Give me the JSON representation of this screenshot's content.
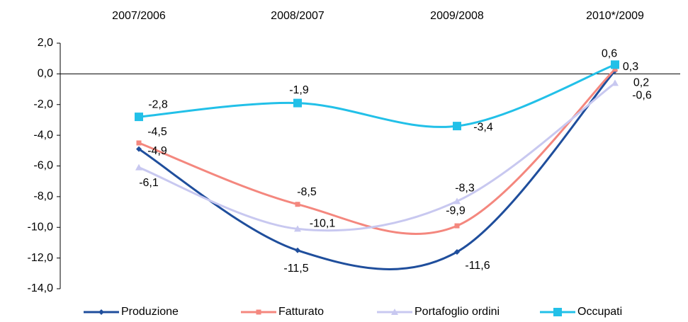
{
  "chart_data": {
    "type": "line",
    "categories": [
      "2007/2006",
      "2008/2007",
      "2009/2008",
      "2010*/2009"
    ],
    "ylim": [
      -14,
      2
    ],
    "yticks": [
      {
        "value": 2,
        "label": "2,0"
      },
      {
        "value": 0,
        "label": "0,0"
      },
      {
        "value": -2,
        "label": "-2,0"
      },
      {
        "value": -4,
        "label": "-4,0"
      },
      {
        "value": -6,
        "label": "-6,0"
      },
      {
        "value": -8,
        "label": "-8,0"
      },
      {
        "value": -10,
        "label": "-10,0"
      },
      {
        "value": -12,
        "label": "-12,0"
      },
      {
        "value": -14,
        "label": "-14,0"
      }
    ],
    "smooth": true,
    "series": [
      {
        "name": "Produzione",
        "color": "#1f4e9c",
        "marker": "diamond",
        "values": [
          -4.9,
          -11.5,
          -11.6,
          0.2
        ],
        "value_labels": [
          "-4,9",
          "-11,5",
          "-11,6",
          "0,2"
        ]
      },
      {
        "name": "Fatturato",
        "color": "#f4877e",
        "marker": "square",
        "values": [
          -4.5,
          -8.5,
          -9.9,
          0.3
        ],
        "value_labels": [
          "-4,5",
          "-8,5",
          "-9,9",
          "0,3"
        ]
      },
      {
        "name": "Portafoglio ordini",
        "color": "#c8c8f0",
        "marker": "triangle",
        "values": [
          -6.1,
          -10.1,
          -8.3,
          -0.6
        ],
        "value_labels": [
          "-6,1",
          "-10,1",
          "-8,3",
          "-0,6"
        ]
      },
      {
        "name": "Occupati",
        "color": "#22c0e8",
        "marker": "bigsquare",
        "values": [
          -2.8,
          -1.9,
          -3.4,
          0.6
        ],
        "value_labels": [
          "-2,8",
          "-1,9",
          "-3,4",
          "0,6"
        ]
      }
    ]
  }
}
